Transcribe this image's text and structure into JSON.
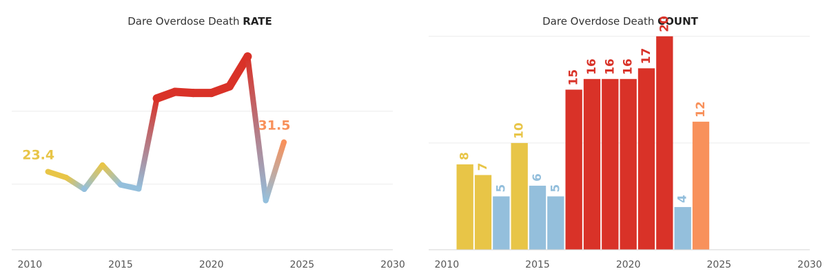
{
  "colors": {
    "yellow": "#E8C547",
    "blue": "#94BFDC",
    "red": "#D93228",
    "orange": "#F8915B",
    "grid": "#EBEBEB",
    "axis": "#D4D4D4",
    "tick": "#555555"
  },
  "chart_data": [
    {
      "type": "line",
      "title_prefix": "Dare Overdose Death",
      "title_emphasis": "RATE",
      "x": [
        2011,
        2012,
        2013,
        2014,
        2015,
        2016,
        2017,
        2018,
        2019,
        2020,
        2021,
        2022,
        2023,
        2024
      ],
      "y": [
        23.4,
        21.8,
        18.6,
        25.2,
        19.8,
        18.7,
        43.5,
        45.3,
        45.0,
        45.0,
        46.8,
        55.0,
        15.5,
        31.5
      ],
      "y_scale_note": "no y-axis printed; values estimated from the two labeled endpoints",
      "point_colors": [
        "yellow",
        "yellow",
        "blue",
        "yellow",
        "blue",
        "blue",
        "red",
        "red",
        "red",
        "red",
        "red",
        "red",
        "blue",
        "orange"
      ],
      "point_labels": [
        {
          "index": 0,
          "text": "23.4"
        },
        {
          "index": 13,
          "text": "31.5"
        }
      ],
      "xlim": [
        2009,
        2030
      ],
      "ylim": [
        2,
        62
      ],
      "xticks": [
        2010,
        2015,
        2020,
        2025,
        2030
      ],
      "ygrid": [
        20,
        40
      ],
      "grid": true
    },
    {
      "type": "bar",
      "title_prefix": "Dare Overdose Death",
      "title_emphasis": "COUNT",
      "categories": [
        2011,
        2012,
        2013,
        2014,
        2015,
        2016,
        2017,
        2018,
        2019,
        2020,
        2021,
        2022,
        2023,
        2024
      ],
      "values": [
        8,
        7,
        5,
        10,
        6,
        5,
        15,
        16,
        16,
        16,
        17,
        20,
        4,
        12
      ],
      "bar_colors": [
        "yellow",
        "yellow",
        "blue",
        "yellow",
        "blue",
        "blue",
        "red",
        "red",
        "red",
        "red",
        "red",
        "red",
        "blue",
        "orange"
      ],
      "xlim": [
        2009,
        2030
      ],
      "ylim": [
        0,
        20.5
      ],
      "xticks": [
        2010,
        2015,
        2020,
        2025,
        2030
      ],
      "ygrid": [
        10,
        20
      ],
      "grid": true
    }
  ]
}
